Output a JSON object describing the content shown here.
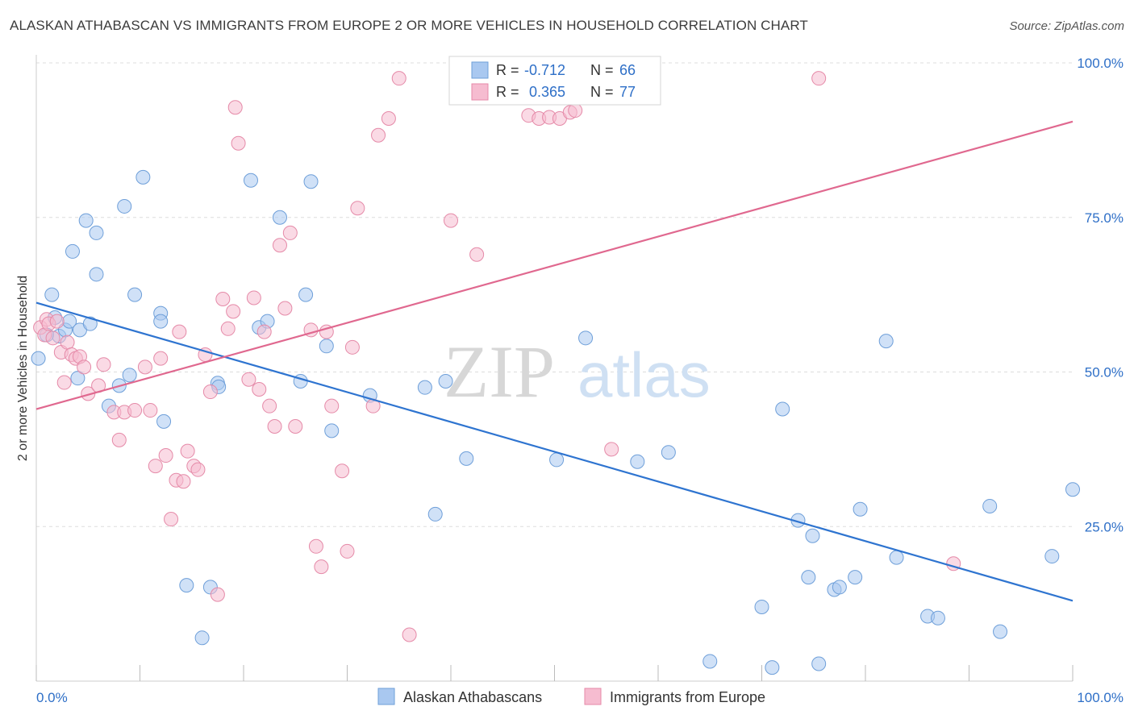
{
  "title": "ALASKAN ATHABASCAN VS IMMIGRANTS FROM EUROPE 2 OR MORE VEHICLES IN HOUSEHOLD CORRELATION CHART",
  "source": "Source: ZipAtlas.com",
  "watermark": {
    "zip": "ZIP",
    "atlas": "atlas"
  },
  "legend_top": {
    "rows": [
      {
        "r_label": "R =",
        "r_value": "-0.712",
        "n_label": "N =",
        "n_value": "66"
      },
      {
        "r_label": "R =",
        "r_value": "0.365",
        "n_label": "N =",
        "n_value": "77"
      }
    ]
  },
  "legend_bottom": [
    "Alaskan Athabascans",
    "Immigrants from Europe"
  ],
  "colors": {
    "blue_fill": "#a9c8f0",
    "blue_stroke": "#6e9fd9",
    "blue_line": "#2e74d0",
    "pink_fill": "#f6bcd0",
    "pink_stroke": "#e58aa8",
    "pink_line": "#e0688f",
    "value_text": "#2e6fc7",
    "grid": "#dddddd"
  },
  "chart_data": {
    "type": "scatter",
    "title": "ALASKAN ATHABASCAN VS IMMIGRANTS FROM EUROPE 2 OR MORE VEHICLES IN HOUSEHOLD CORRELATION CHART",
    "xlabel": "",
    "ylabel": "2 or more Vehicles in Household",
    "xlim": [
      0,
      100
    ],
    "ylim": [
      0,
      100
    ],
    "x_ticks": [
      "0.0%",
      "100.0%"
    ],
    "y_ticks": [
      "25.0%",
      "50.0%",
      "75.0%",
      "100.0%"
    ],
    "y_tick_values": [
      25,
      50,
      75,
      100
    ],
    "grid": true,
    "legend_position": "bottom",
    "series": [
      {
        "name": "Alaskan Athabascans",
        "color": "#a9c8f0",
        "trend": {
          "x": [
            0,
            100
          ],
          "y": [
            61.2,
            13.0
          ]
        },
        "points": [
          [
            0.2,
            52.2
          ],
          [
            1.5,
            62.5
          ],
          [
            1.8,
            58.8
          ],
          [
            2.2,
            55.8
          ],
          [
            2.8,
            56.8
          ],
          [
            3.2,
            58.2
          ],
          [
            4.0,
            49.0
          ],
          [
            4.2,
            56.8
          ],
          [
            5.2,
            57.8
          ],
          [
            4.8,
            74.5
          ],
          [
            3.5,
            69.5
          ],
          [
            5.8,
            72.5
          ],
          [
            5.8,
            65.8
          ],
          [
            8.5,
            76.8
          ],
          [
            9.0,
            49.5
          ],
          [
            8.0,
            47.8
          ],
          [
            7.0,
            44.5
          ],
          [
            9.5,
            62.5
          ],
          [
            10.3,
            81.5
          ],
          [
            12.0,
            59.5
          ],
          [
            12.0,
            58.2
          ],
          [
            12.3,
            42.0
          ],
          [
            14.5,
            15.5
          ],
          [
            16.0,
            7.0
          ],
          [
            16.8,
            15.2
          ],
          [
            17.5,
            48.2
          ],
          [
            17.6,
            47.6
          ],
          [
            20.7,
            81.0
          ],
          [
            21.5,
            57.2
          ],
          [
            22.3,
            58.2
          ],
          [
            23.5,
            75.0
          ],
          [
            25.5,
            48.5
          ],
          [
            26.0,
            62.5
          ],
          [
            26.5,
            80.8
          ],
          [
            28.0,
            54.2
          ],
          [
            28.5,
            40.5
          ],
          [
            32.2,
            46.2
          ],
          [
            37.5,
            47.5
          ],
          [
            38.5,
            27.0
          ],
          [
            39.5,
            48.5
          ],
          [
            41.5,
            36.0
          ],
          [
            50.2,
            35.8
          ],
          [
            53.0,
            55.5
          ],
          [
            58.0,
            35.5
          ],
          [
            61.0,
            37.0
          ],
          [
            65.0,
            3.2
          ],
          [
            70.0,
            12.0
          ],
          [
            71.0,
            2.2
          ],
          [
            72.0,
            44.0
          ],
          [
            73.5,
            26.0
          ],
          [
            74.5,
            16.8
          ],
          [
            74.9,
            23.5
          ],
          [
            75.5,
            2.8
          ],
          [
            77.0,
            14.8
          ],
          [
            77.5,
            15.2
          ],
          [
            79.0,
            16.8
          ],
          [
            79.5,
            27.8
          ],
          [
            82.0,
            55.0
          ],
          [
            83.0,
            20.0
          ],
          [
            86.0,
            10.5
          ],
          [
            87.0,
            10.2
          ],
          [
            92.0,
            28.3
          ],
          [
            93.0,
            8.0
          ],
          [
            98.0,
            20.2
          ],
          [
            100.0,
            31.0
          ],
          [
            1.0,
            56.0
          ]
        ]
      },
      {
        "name": "Immigrants from Europe",
        "color": "#f6bcd0",
        "trend": {
          "x": [
            0,
            100
          ],
          "y": [
            44.0,
            90.5
          ]
        },
        "points": [
          [
            0.4,
            57.2
          ],
          [
            0.8,
            56.0
          ],
          [
            1.0,
            58.5
          ],
          [
            1.2,
            57.8
          ],
          [
            1.6,
            55.5
          ],
          [
            2.0,
            58.2
          ],
          [
            2.4,
            53.2
          ],
          [
            2.7,
            48.3
          ],
          [
            3.0,
            54.8
          ],
          [
            3.4,
            52.8
          ],
          [
            3.8,
            52.2
          ],
          [
            4.2,
            52.5
          ],
          [
            4.6,
            50.8
          ],
          [
            5.0,
            46.5
          ],
          [
            6.0,
            47.8
          ],
          [
            6.5,
            51.2
          ],
          [
            7.5,
            43.5
          ],
          [
            8.0,
            39.0
          ],
          [
            8.5,
            43.5
          ],
          [
            9.5,
            43.8
          ],
          [
            10.5,
            50.8
          ],
          [
            11.0,
            43.8
          ],
          [
            11.5,
            34.8
          ],
          [
            12.0,
            52.2
          ],
          [
            12.5,
            36.5
          ],
          [
            13.0,
            26.2
          ],
          [
            13.5,
            32.5
          ],
          [
            13.8,
            56.5
          ],
          [
            14.2,
            32.3
          ],
          [
            14.6,
            37.2
          ],
          [
            15.2,
            34.8
          ],
          [
            15.6,
            34.2
          ],
          [
            16.3,
            52.8
          ],
          [
            16.8,
            46.8
          ],
          [
            17.5,
            14.0
          ],
          [
            18.0,
            61.8
          ],
          [
            18.5,
            57.0
          ],
          [
            19.0,
            59.8
          ],
          [
            19.2,
            92.8
          ],
          [
            19.5,
            87.0
          ],
          [
            20.5,
            48.8
          ],
          [
            21.0,
            62.0
          ],
          [
            21.5,
            47.2
          ],
          [
            22.0,
            56.5
          ],
          [
            22.5,
            44.5
          ],
          [
            23.0,
            41.2
          ],
          [
            23.5,
            70.5
          ],
          [
            24.0,
            60.3
          ],
          [
            24.5,
            72.5
          ],
          [
            25.0,
            41.2
          ],
          [
            26.5,
            56.8
          ],
          [
            27.0,
            21.8
          ],
          [
            27.5,
            18.5
          ],
          [
            28.0,
            56.5
          ],
          [
            28.5,
            44.5
          ],
          [
            29.5,
            34.0
          ],
          [
            30.0,
            21.0
          ],
          [
            30.5,
            54.0
          ],
          [
            31.0,
            76.5
          ],
          [
            32.5,
            44.5
          ],
          [
            33.0,
            88.3
          ],
          [
            34.0,
            91.0
          ],
          [
            35.0,
            97.5
          ],
          [
            36.0,
            7.5
          ],
          [
            40.0,
            74.5
          ],
          [
            42.5,
            69.0
          ],
          [
            45.0,
            97.5
          ],
          [
            46.0,
            97.5
          ],
          [
            47.5,
            91.5
          ],
          [
            48.5,
            91.0
          ],
          [
            49.5,
            91.2
          ],
          [
            50.5,
            91.0
          ],
          [
            51.5,
            92.0
          ],
          [
            52.0,
            92.3
          ],
          [
            55.5,
            37.5
          ],
          [
            75.5,
            97.5
          ],
          [
            88.5,
            19.0
          ]
        ]
      }
    ]
  }
}
